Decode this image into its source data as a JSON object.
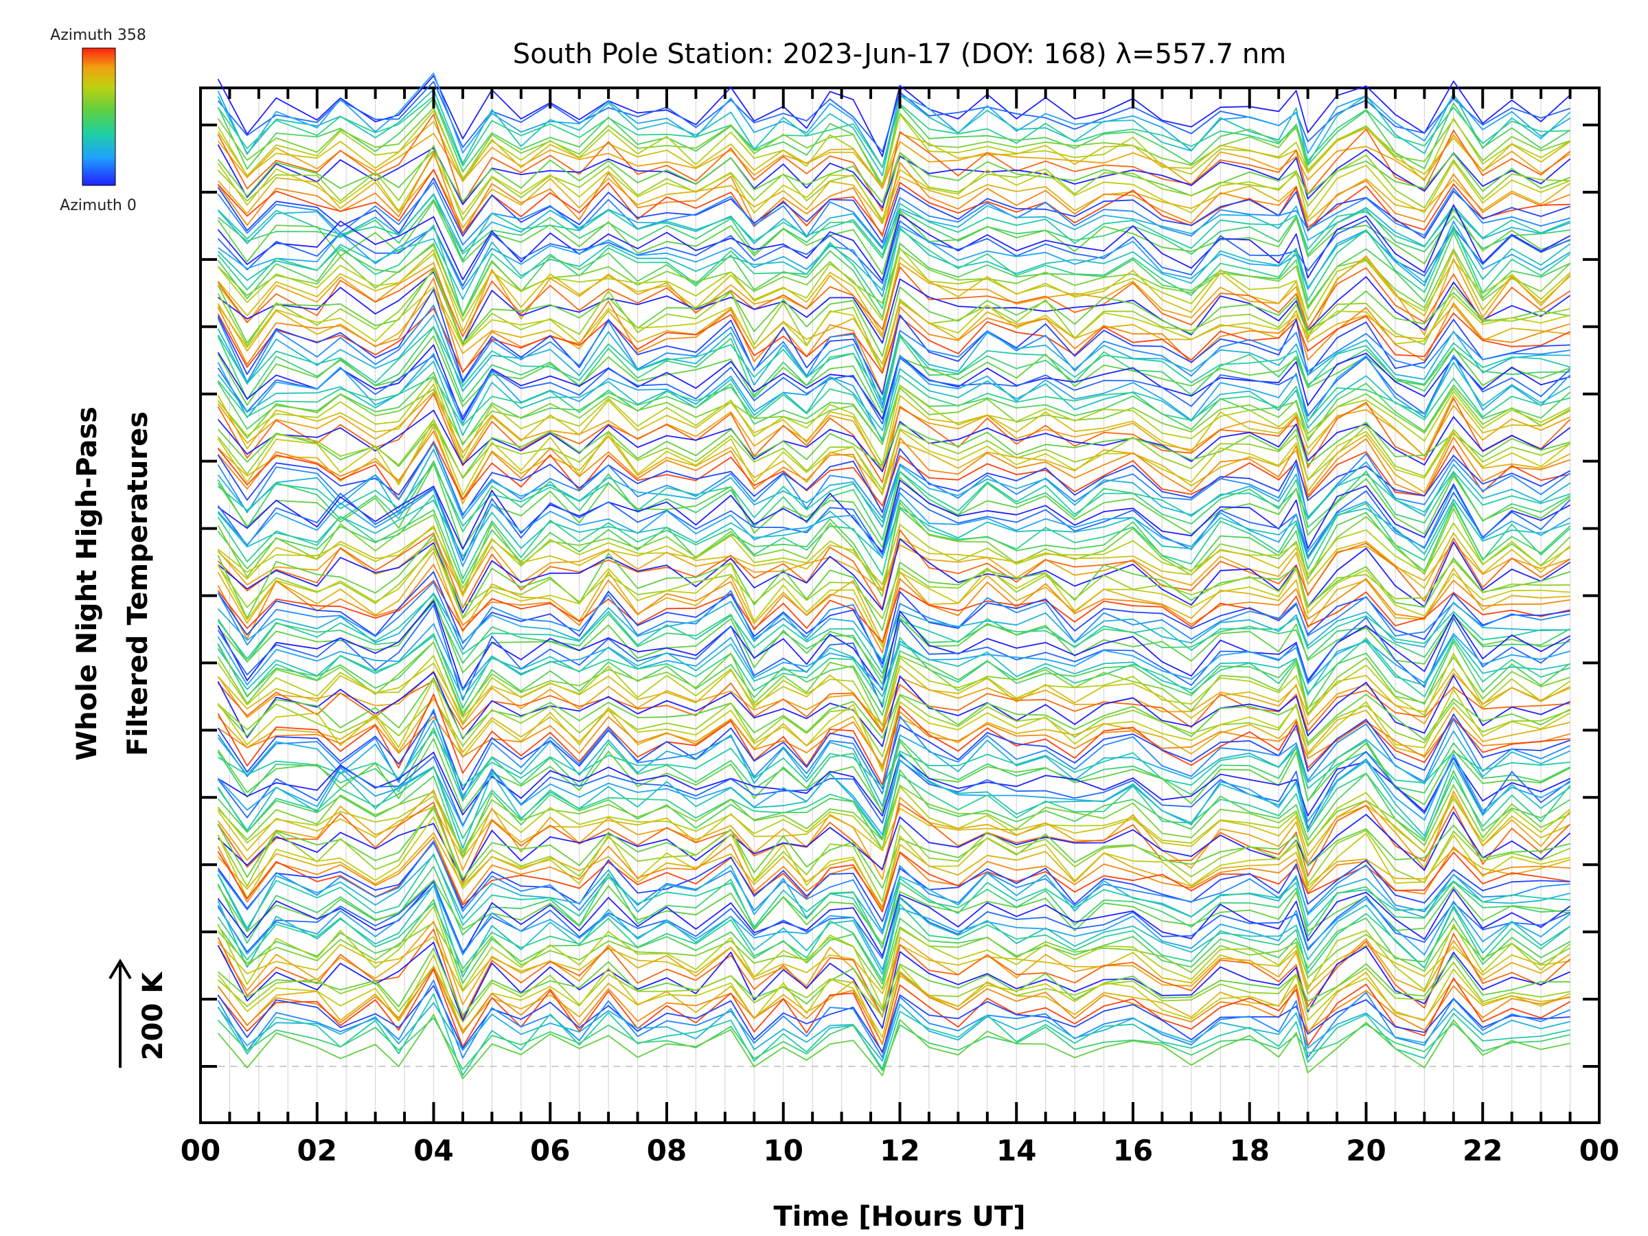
{
  "chart_data": {
    "type": "line",
    "title": "South Pole Station: 2023-Jun-17 (DOY: 168) λ=557.7 nm",
    "xlabel": "Time [Hours UT]",
    "ylabel_lines": [
      "Whole Night High-Pass",
      "Filtered Temperatures"
    ],
    "scale_label": "200 K",
    "xlim": [
      0,
      24
    ],
    "x_tick_labels": [
      "00",
      "02",
      "04",
      "06",
      "08",
      "10",
      "12",
      "14",
      "16",
      "18",
      "20",
      "22",
      "00"
    ],
    "legend": {
      "top": "Azimuth 358",
      "bottom": "Azimuth 0",
      "placement": "top-left"
    },
    "colorscale": [
      "#2020ff",
      "#20a0ff",
      "#20d0a0",
      "#60d040",
      "#c0d010",
      "#f0a010",
      "#ff2010"
    ],
    "sample_times": [
      0.3,
      0.8,
      1.3,
      2.0,
      2.4,
      3.0,
      3.4,
      4.0,
      4.5,
      5.0,
      5.5,
      6.0,
      6.5,
      7.0,
      7.5,
      8.0,
      8.5,
      9.1,
      9.5,
      10.0,
      10.4,
      10.8,
      11.2,
      11.7,
      12.0,
      12.5,
      13.0,
      13.5,
      14.0,
      14.5,
      15.0,
      15.5,
      16.0,
      16.5,
      17.0,
      17.5,
      18.0,
      18.5,
      18.8,
      19.0,
      19.5,
      20.0,
      20.5,
      21.0,
      21.5,
      22.0,
      22.5,
      23.0,
      23.5
    ],
    "n_groups": 14,
    "lines_per_group": 12,
    "group_signatures": [
      [
        40,
        -35,
        15,
        -5,
        25,
        -10,
        5,
        60,
        -50,
        20,
        -15,
        10,
        -10,
        25,
        -5,
        10,
        -10,
        30,
        -20,
        5,
        -15,
        20,
        10,
        -60,
        45,
        10,
        -5,
        15,
        -5,
        10,
        -10,
        5,
        10,
        -15,
        -30,
        10,
        5,
        -10,
        20,
        -40,
        15,
        40,
        -10,
        -35,
        45,
        -20,
        10,
        -10,
        15
      ],
      [
        30,
        -25,
        20,
        10,
        -15,
        15,
        -25,
        55,
        -45,
        15,
        -10,
        20,
        -15,
        30,
        -10,
        5,
        -5,
        25,
        -25,
        10,
        -20,
        15,
        20,
        -50,
        40,
        5,
        -10,
        20,
        0,
        15,
        -15,
        10,
        15,
        -10,
        -25,
        5,
        10,
        -5,
        25,
        -35,
        10,
        35,
        -15,
        -30,
        40,
        -15,
        5,
        -5,
        10
      ],
      [
        20,
        -30,
        10,
        -10,
        30,
        -5,
        10,
        50,
        -55,
        25,
        -20,
        15,
        -5,
        20,
        0,
        15,
        -15,
        20,
        -15,
        0,
        -10,
        25,
        5,
        -55,
        50,
        15,
        0,
        10,
        -10,
        5,
        -5,
        0,
        20,
        -20,
        -35,
        15,
        0,
        -15,
        15,
        -45,
        20,
        45,
        -5,
        -40,
        50,
        -25,
        15,
        -15,
        20
      ],
      [
        35,
        -40,
        25,
        0,
        15,
        -20,
        0,
        65,
        -40,
        10,
        -5,
        5,
        -20,
        35,
        -15,
        5,
        0,
        35,
        -30,
        15,
        -25,
        10,
        15,
        -65,
        35,
        0,
        -10,
        25,
        5,
        20,
        -20,
        15,
        5,
        -5,
        -25,
        5,
        10,
        -5,
        25,
        -30,
        10,
        30,
        -20,
        -25,
        35,
        -10,
        0,
        0,
        5
      ]
    ]
  }
}
